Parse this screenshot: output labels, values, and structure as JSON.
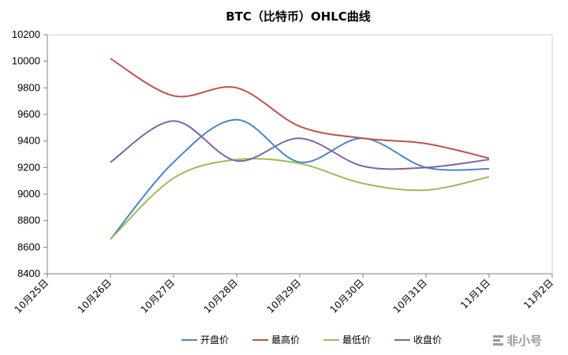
{
  "chart_data": {
    "type": "line",
    "title": "BTC（比特币）OHLC曲线",
    "x": [
      "10月25日",
      "10月26日",
      "10月27日",
      "10月28日",
      "10月29日",
      "10月30日",
      "10月31日",
      "11月1日",
      "11月2日"
    ],
    "yticks": [
      "8400",
      "8600",
      "8800",
      "9000",
      "9200",
      "9400",
      "9600",
      "9800",
      "10000",
      "10200"
    ],
    "ylim": [
      8400,
      10200
    ],
    "grid": false,
    "smooth": true,
    "legend_position": "bottom",
    "series": [
      {
        "name": "开盘价",
        "color": "#4a86c5",
        "values": [
          null,
          8660,
          9240,
          9560,
          9240,
          9420,
          9200,
          9190,
          null
        ]
      },
      {
        "name": "最高价",
        "color": "#c0504d",
        "values": [
          null,
          10020,
          9740,
          9800,
          9510,
          9420,
          9380,
          9270,
          null
        ]
      },
      {
        "name": "最低价",
        "color": "#9bbb59",
        "values": [
          null,
          8660,
          9120,
          9260,
          9230,
          9080,
          9030,
          9130,
          null
        ]
      },
      {
        "name": "收盘价",
        "color": "#8064a2",
        "values": [
          null,
          9240,
          9550,
          9250,
          9420,
          9210,
          9200,
          9260,
          null
        ]
      }
    ]
  },
  "watermark": {
    "text": "非小号"
  }
}
